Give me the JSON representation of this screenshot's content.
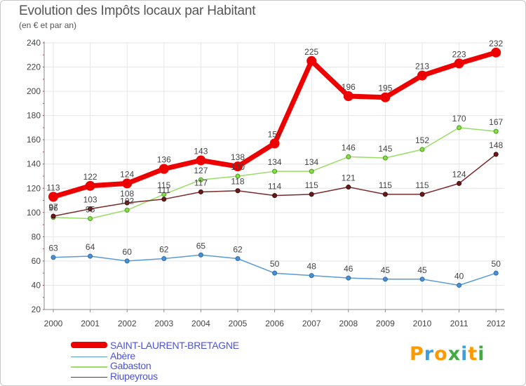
{
  "title": "Evolution des Impôts locaux par Habitant",
  "subtitle": "(en € et par an)",
  "logo": {
    "letters": [
      "P",
      "r",
      "o",
      "x",
      "i",
      "t",
      "i"
    ],
    "colors": [
      "#ff9900",
      "#3aa0e0",
      "#ff9900",
      "#44aa44",
      "#3aa0e0",
      "#ff9900",
      "#44aa44"
    ]
  },
  "chart_data": {
    "type": "line",
    "title": "Evolution des Impôts locaux par Habitant",
    "subtitle": "(en € et par an)",
    "xlabel": "",
    "ylabel": "",
    "x": [
      "2000",
      "2001",
      "2002",
      "2003",
      "2004",
      "2005",
      "2006",
      "2007",
      "2008",
      "2009",
      "2010",
      "2011",
      "2012"
    ],
    "ylim": [
      20,
      240
    ],
    "yticks": [
      "20",
      "40",
      "60",
      "80",
      "100",
      "120",
      "140",
      "160",
      "180",
      "200",
      "220",
      "240"
    ],
    "grid": true,
    "legend_position": "bottom-left",
    "series": [
      {
        "name": "SAINT-LAURENT-BRETAGNE",
        "color": "#ee0000",
        "values": [
          113,
          122,
          124,
          136,
          143,
          138,
          157,
          225,
          196,
          195,
          213,
          223,
          232
        ],
        "labels": [
          "113",
          "122",
          "124",
          "136",
          "143",
          "138",
          "157",
          "225",
          "196",
          "195",
          "213",
          "223",
          "232"
        ]
      },
      {
        "name": "Abère",
        "color": "#5b9bd5",
        "values": [
          63,
          64,
          60,
          62,
          65,
          62,
          50,
          48,
          46,
          45,
          45,
          40,
          50
        ],
        "labels": [
          "63",
          "64",
          "60",
          "62",
          "65",
          "62",
          "50",
          "48",
          "46",
          "45",
          "45",
          "40",
          "50"
        ]
      },
      {
        "name": "Gabaston",
        "color": "#99dd66",
        "values": [
          96,
          95,
          102,
          115,
          127,
          130,
          134,
          134,
          146,
          145,
          152,
          170,
          167
        ],
        "labels": [
          "96",
          "95",
          "102",
          "115",
          "127",
          "130",
          "134",
          "134",
          "146",
          "145",
          "152",
          "170",
          "167"
        ]
      },
      {
        "name": "Riupeyrous",
        "color": "#7a2a2a",
        "values": [
          97,
          103,
          108,
          111,
          117,
          118,
          114,
          115,
          121,
          115,
          115,
          124,
          148
        ],
        "labels": [
          "97",
          "103",
          "108",
          "111",
          "117",
          "118",
          "114",
          "115",
          "121",
          "115",
          "115",
          "124",
          "148"
        ]
      }
    ]
  }
}
